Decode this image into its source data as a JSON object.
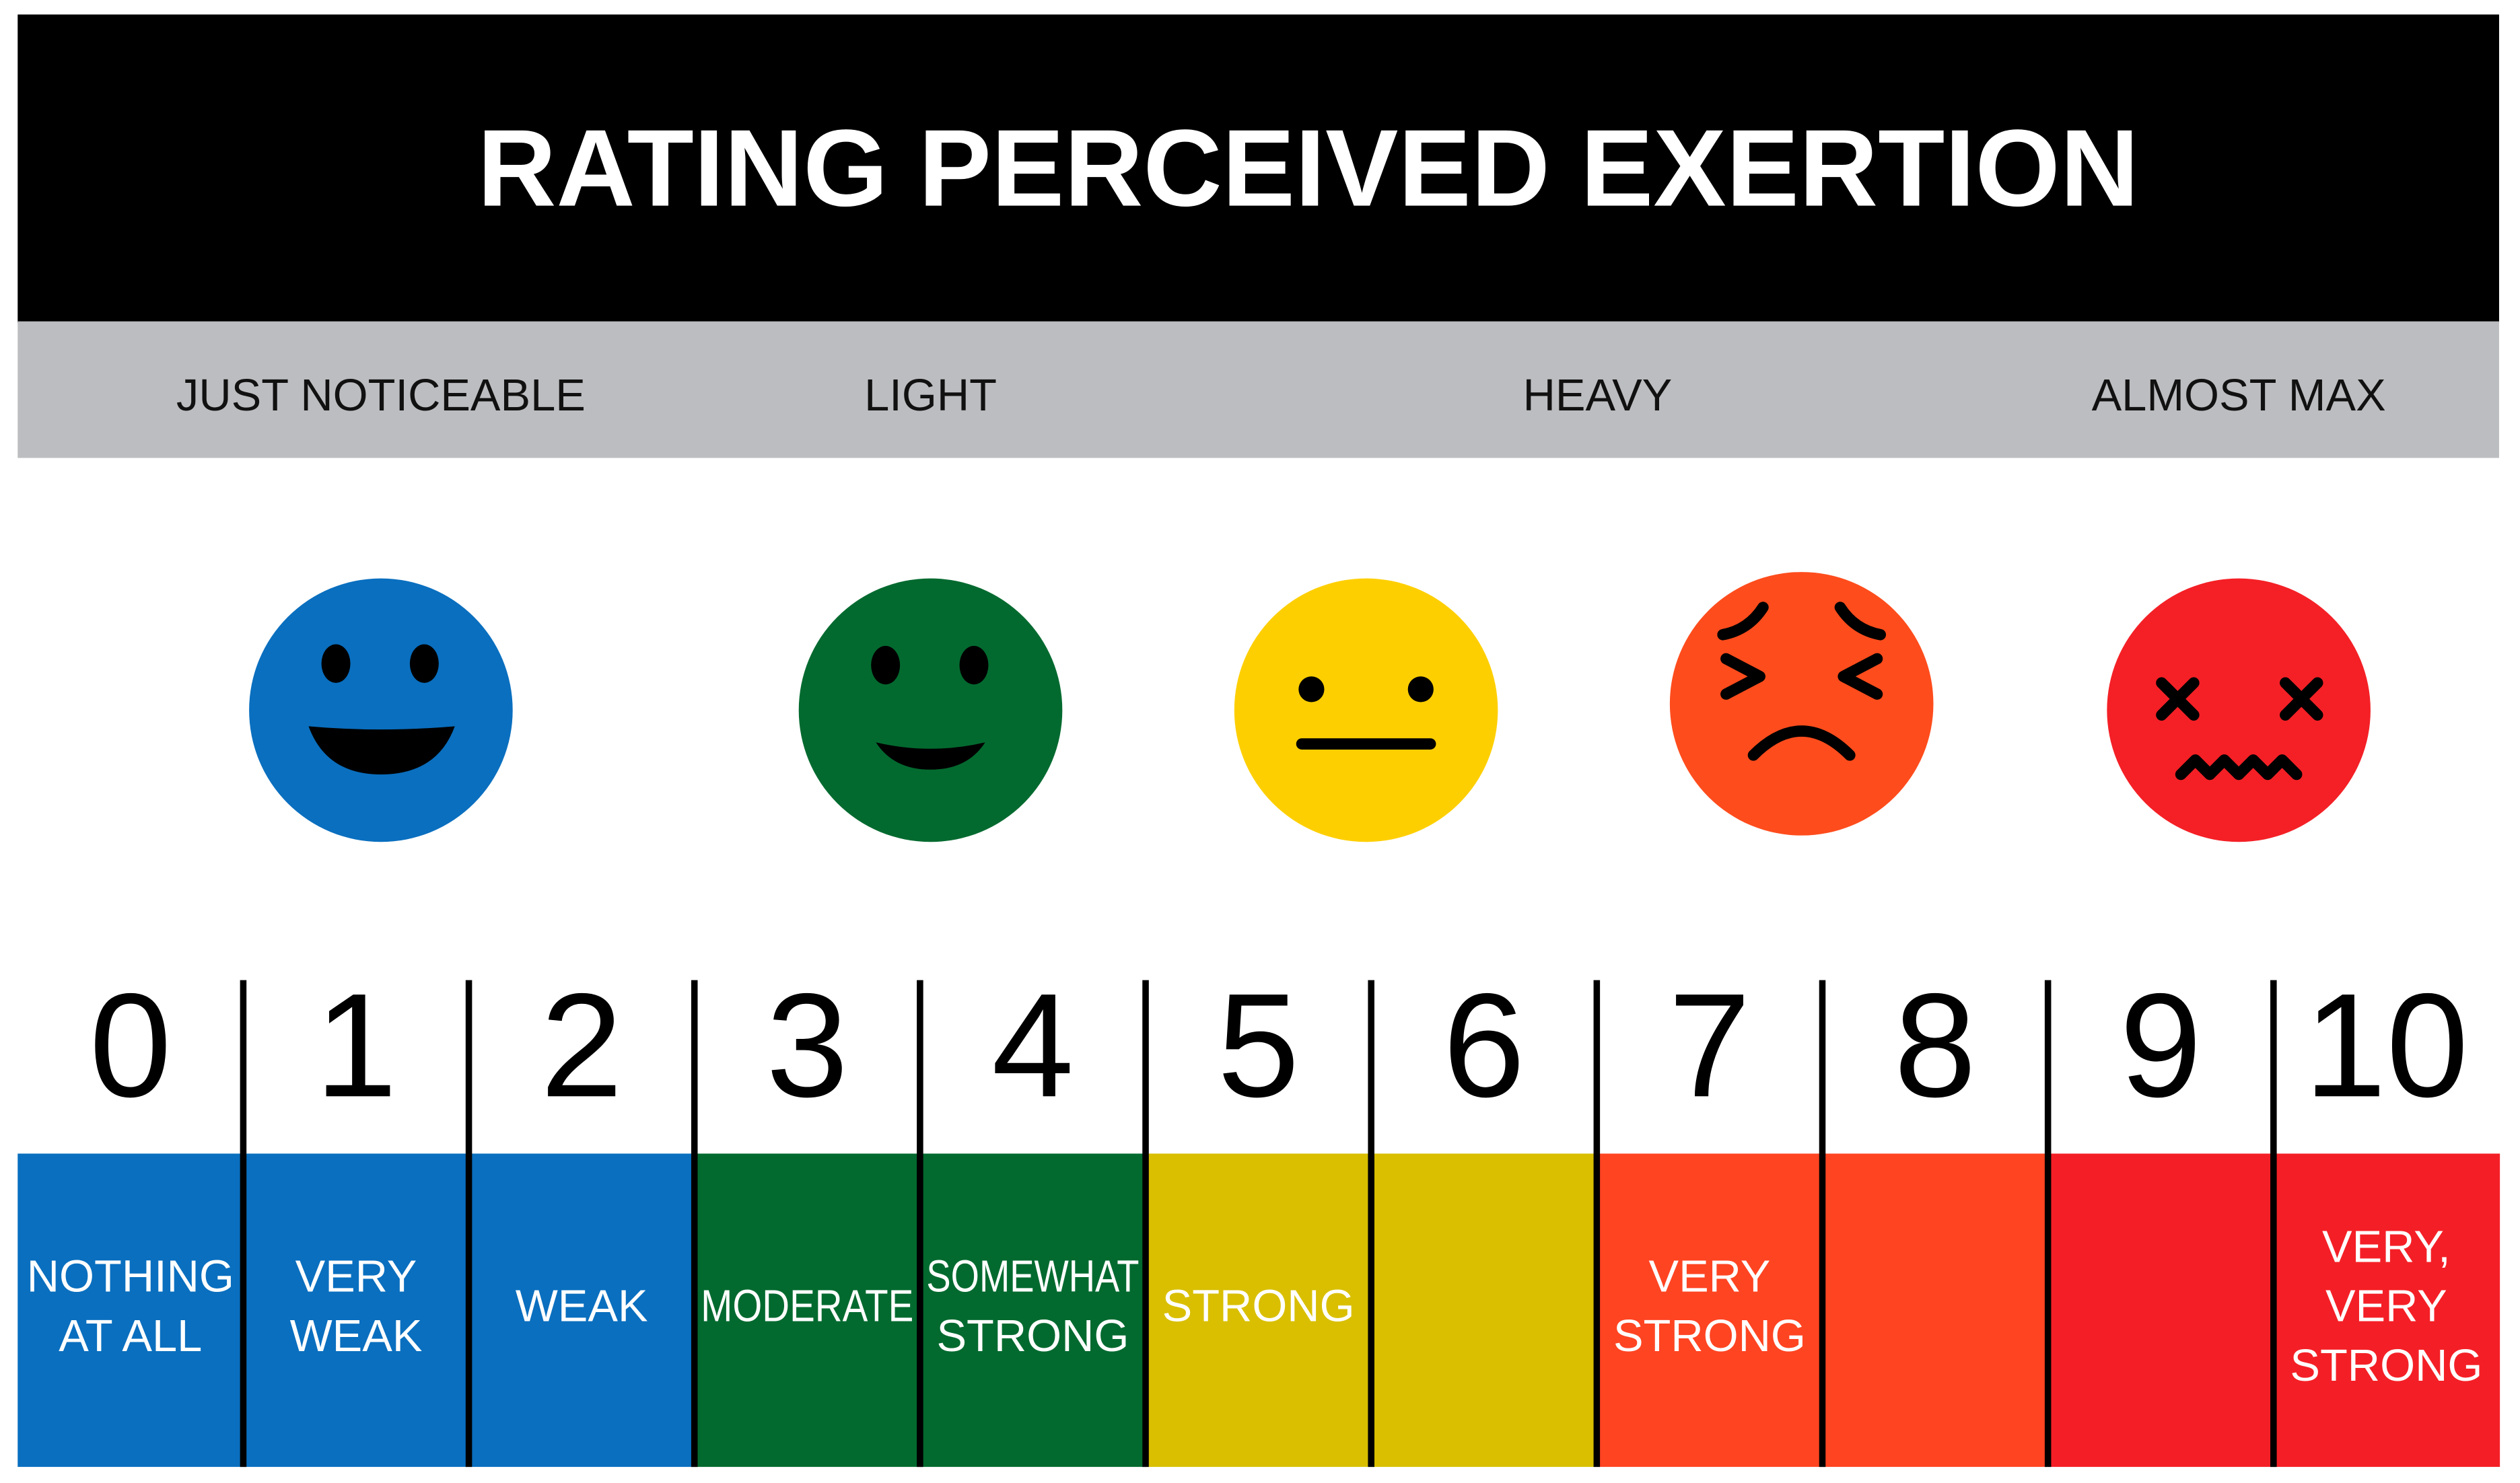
{
  "header": {
    "title": "RATING PERCEIVED EXERTION"
  },
  "zones": [
    "JUST NOTICEABLE",
    "LIGHT",
    "HEAVY",
    "ALMOST MAX"
  ],
  "scale": [
    {
      "number": 0,
      "color": "#0a6fbf",
      "description": [
        "NOTHING",
        "AT ALL"
      ]
    },
    {
      "number": 1,
      "color": "#0a6fbf",
      "description": [
        "VERY",
        "WEAK"
      ]
    },
    {
      "number": 2,
      "color": "#0a6fbf",
      "description": [
        "WEAK"
      ]
    },
    {
      "number": 3,
      "color": "#036a2f",
      "description": [
        "MODERATE"
      ]
    },
    {
      "number": 4,
      "color": "#036a2f",
      "description": [
        "SOMEWHAT",
        "STRONG"
      ]
    },
    {
      "number": 5,
      "color": "#d9bf00",
      "description": [
        "STRONG"
      ]
    },
    {
      "number": 6,
      "color": "#d9bf00"
    },
    {
      "number": 7,
      "color": "#ff4422",
      "description": [
        "VERY",
        "STRONG"
      ]
    },
    {
      "number": 8,
      "color": "#ff4422"
    },
    {
      "number": 9,
      "color": "#f41f26"
    },
    {
      "number": 10,
      "color": "#f41f26",
      "description": [
        "VERY,",
        "VERY",
        "STRONG"
      ]
    }
  ]
}
